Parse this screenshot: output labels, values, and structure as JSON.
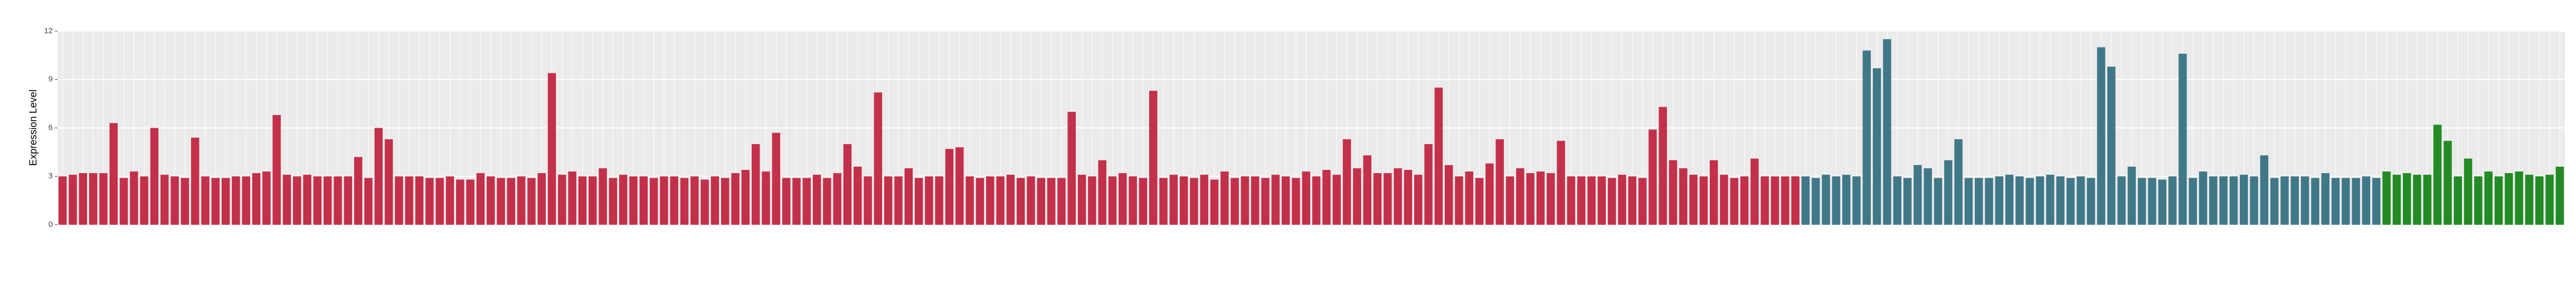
{
  "chart_data": {
    "type": "bar",
    "ylabel": "Expression Level",
    "ylim": [
      0,
      12
    ],
    "yticks": [
      0,
      3,
      6,
      9,
      12
    ],
    "grid": true,
    "values": [
      3.0,
      3.1,
      3.2,
      3.2,
      3.2,
      6.3,
      2.9,
      3.3,
      3.0,
      6.0,
      3.1,
      3.0,
      2.9,
      5.4,
      3.0,
      2.9,
      2.9,
      3.0,
      3.0,
      3.2,
      3.3,
      6.8,
      3.1,
      3.0,
      3.1,
      3.0,
      3.0,
      3.0,
      3.0,
      4.2,
      2.9,
      6.0,
      5.3,
      3.0,
      3.0,
      3.0,
      2.9,
      2.9,
      3.0,
      2.8,
      2.8,
      3.2,
      3.0,
      2.9,
      2.9,
      3.0,
      2.9,
      3.2,
      9.4,
      3.1,
      3.3,
      3.0,
      3.0,
      3.5,
      2.9,
      3.1,
      3.0,
      3.0,
      2.9,
      3.0,
      3.0,
      2.9,
      3.0,
      2.8,
      3.0,
      2.9,
      3.2,
      3.4,
      5.0,
      3.3,
      5.7,
      2.9,
      2.9,
      2.9,
      3.1,
      2.9,
      3.2,
      5.0,
      3.6,
      3.0,
      8.2,
      3.0,
      3.0,
      3.5,
      2.9,
      3.0,
      3.0,
      4.7,
      4.8,
      3.0,
      2.9,
      3.0,
      3.0,
      3.1,
      2.9,
      3.0,
      2.9,
      2.9,
      2.9,
      7.0,
      3.1,
      3.0,
      4.0,
      3.0,
      3.2,
      3.0,
      2.9,
      8.3,
      2.9,
      3.1,
      3.0,
      2.9,
      3.1,
      2.8,
      3.3,
      2.9,
      3.0,
      3.0,
      2.9,
      3.1,
      3.0,
      2.9,
      3.3,
      3.0,
      3.4,
      3.1,
      5.3,
      3.5,
      4.3,
      3.2,
      3.2,
      3.5,
      3.4,
      3.1,
      5.0,
      8.5,
      3.7,
      3.0,
      3.3,
      2.9,
      3.8,
      5.3,
      3.0,
      3.5,
      3.2,
      3.3,
      3.2,
      5.2,
      3.0,
      3.0,
      3.0,
      3.0,
      2.9,
      3.1,
      3.0,
      2.9,
      5.9,
      7.3,
      4.0,
      3.5,
      3.1,
      3.0,
      4.0,
      3.1,
      2.9,
      3.0,
      4.1,
      3.0,
      3.0,
      3.0,
      3.0,
      3.0,
      2.9,
      3.1,
      3.0,
      3.1,
      3.0,
      10.8,
      9.7,
      11.5,
      3.0,
      2.9,
      3.7,
      3.5,
      2.9,
      4.0,
      5.3,
      2.9,
      2.9,
      2.9,
      3.0,
      3.1,
      3.0,
      2.9,
      3.0,
      3.1,
      3.0,
      2.9,
      3.0,
      2.9,
      11.0,
      9.8,
      3.0,
      3.6,
      2.9,
      2.9,
      2.8,
      3.0,
      10.6,
      2.9,
      3.3,
      3.0,
      3.0,
      3.0,
      3.1,
      3.0,
      4.3,
      2.9,
      3.0,
      3.0,
      3.0,
      2.9,
      3.2,
      2.9,
      2.9,
      2.9,
      3.0,
      2.9,
      3.3,
      3.1,
      3.2,
      3.1,
      3.1,
      6.2,
      5.2,
      3.0,
      4.1,
      3.0,
      3.3,
      3.0,
      3.2,
      3.3,
      3.1,
      3.0,
      3.1,
      3.6
    ],
    "colors": [
      "#c3304a",
      "#c3304a",
      "#c3304a",
      "#c3304a",
      "#c3304a",
      "#c3304a",
      "#c3304a",
      "#c3304a",
      "#c3304a",
      "#c3304a",
      "#c3304a",
      "#c3304a",
      "#c3304a",
      "#c3304a",
      "#c3304a",
      "#c3304a",
      "#c3304a",
      "#c3304a",
      "#c3304a",
      "#c3304a",
      "#c3304a",
      "#c3304a",
      "#c3304a",
      "#c3304a",
      "#c3304a",
      "#c3304a",
      "#c3304a",
      "#c3304a",
      "#c3304a",
      "#c3304a",
      "#c3304a",
      "#c3304a",
      "#c3304a",
      "#c3304a",
      "#c3304a",
      "#c3304a",
      "#c3304a",
      "#c3304a",
      "#c3304a",
      "#c3304a",
      "#c3304a",
      "#c3304a",
      "#c3304a",
      "#c3304a",
      "#c3304a",
      "#c3304a",
      "#c3304a",
      "#c3304a",
      "#c3304a",
      "#c3304a",
      "#c3304a",
      "#c3304a",
      "#c3304a",
      "#c3304a",
      "#c3304a",
      "#c3304a",
      "#c3304a",
      "#c3304a",
      "#c3304a",
      "#c3304a",
      "#c3304a",
      "#c3304a",
      "#c3304a",
      "#c3304a",
      "#c3304a",
      "#c3304a",
      "#c3304a",
      "#c3304a",
      "#c3304a",
      "#c3304a",
      "#c3304a",
      "#c3304a",
      "#c3304a",
      "#c3304a",
      "#c3304a",
      "#c3304a",
      "#c3304a",
      "#c3304a",
      "#c3304a",
      "#c3304a",
      "#c3304a",
      "#c3304a",
      "#c3304a",
      "#c3304a",
      "#c3304a",
      "#c3304a",
      "#c3304a",
      "#c3304a",
      "#c3304a",
      "#c3304a",
      "#c3304a",
      "#c3304a",
      "#c3304a",
      "#c3304a",
      "#c3304a",
      "#c3304a",
      "#c3304a",
      "#c3304a",
      "#c3304a",
      "#c3304a",
      "#c3304a",
      "#c3304a",
      "#c3304a",
      "#c3304a",
      "#c3304a",
      "#c3304a",
      "#c3304a",
      "#c3304a",
      "#c3304a",
      "#c3304a",
      "#c3304a",
      "#c3304a",
      "#c3304a",
      "#c3304a",
      "#c3304a",
      "#c3304a",
      "#c3304a",
      "#c3304a",
      "#c3304a",
      "#c3304a",
      "#c3304a",
      "#c3304a",
      "#c3304a",
      "#c3304a",
      "#c3304a",
      "#c3304a",
      "#c3304a",
      "#c3304a",
      "#c3304a",
      "#c3304a",
      "#c3304a",
      "#c3304a",
      "#c3304a",
      "#c3304a",
      "#c3304a",
      "#c3304a",
      "#c3304a",
      "#c3304a",
      "#c3304a",
      "#c3304a",
      "#c3304a",
      "#c3304a",
      "#c3304a",
      "#c3304a",
      "#c3304a",
      "#c3304a",
      "#c3304a",
      "#c3304a",
      "#c3304a",
      "#c3304a",
      "#c3304a",
      "#c3304a",
      "#c3304a",
      "#c3304a",
      "#c3304a",
      "#c3304a",
      "#c3304a",
      "#c3304a",
      "#c3304a",
      "#c3304a",
      "#c3304a",
      "#c3304a",
      "#c3304a",
      "#c3304a",
      "#c3304a",
      "#c3304a",
      "#c3304a",
      "#c3304a",
      "#c3304a",
      "#c3304a",
      "#c3304a",
      "#417888",
      "#417888",
      "#417888",
      "#417888",
      "#417888",
      "#417888",
      "#417888",
      "#417888",
      "#417888",
      "#417888",
      "#417888",
      "#417888",
      "#417888",
      "#417888",
      "#417888",
      "#417888",
      "#417888",
      "#417888",
      "#417888",
      "#417888",
      "#417888",
      "#417888",
      "#417888",
      "#417888",
      "#417888",
      "#417888",
      "#417888",
      "#417888",
      "#417888",
      "#417888",
      "#417888",
      "#417888",
      "#417888",
      "#417888",
      "#417888",
      "#417888",
      "#417888",
      "#417888",
      "#417888",
      "#417888",
      "#417888",
      "#417888",
      "#417888",
      "#417888",
      "#417888",
      "#417888",
      "#417888",
      "#417888",
      "#417888",
      "#417888",
      "#417888",
      "#417888",
      "#417888",
      "#417888",
      "#417888",
      "#417888",
      "#417888",
      "#238b23",
      "#238b23",
      "#238b23",
      "#238b23",
      "#238b23",
      "#238b23",
      "#238b23",
      "#238b23",
      "#238b23",
      "#238b23",
      "#238b23",
      "#238b23",
      "#238b23",
      "#238b23",
      "#238b23",
      "#238b23",
      "#238b23",
      "#238b23"
    ]
  }
}
